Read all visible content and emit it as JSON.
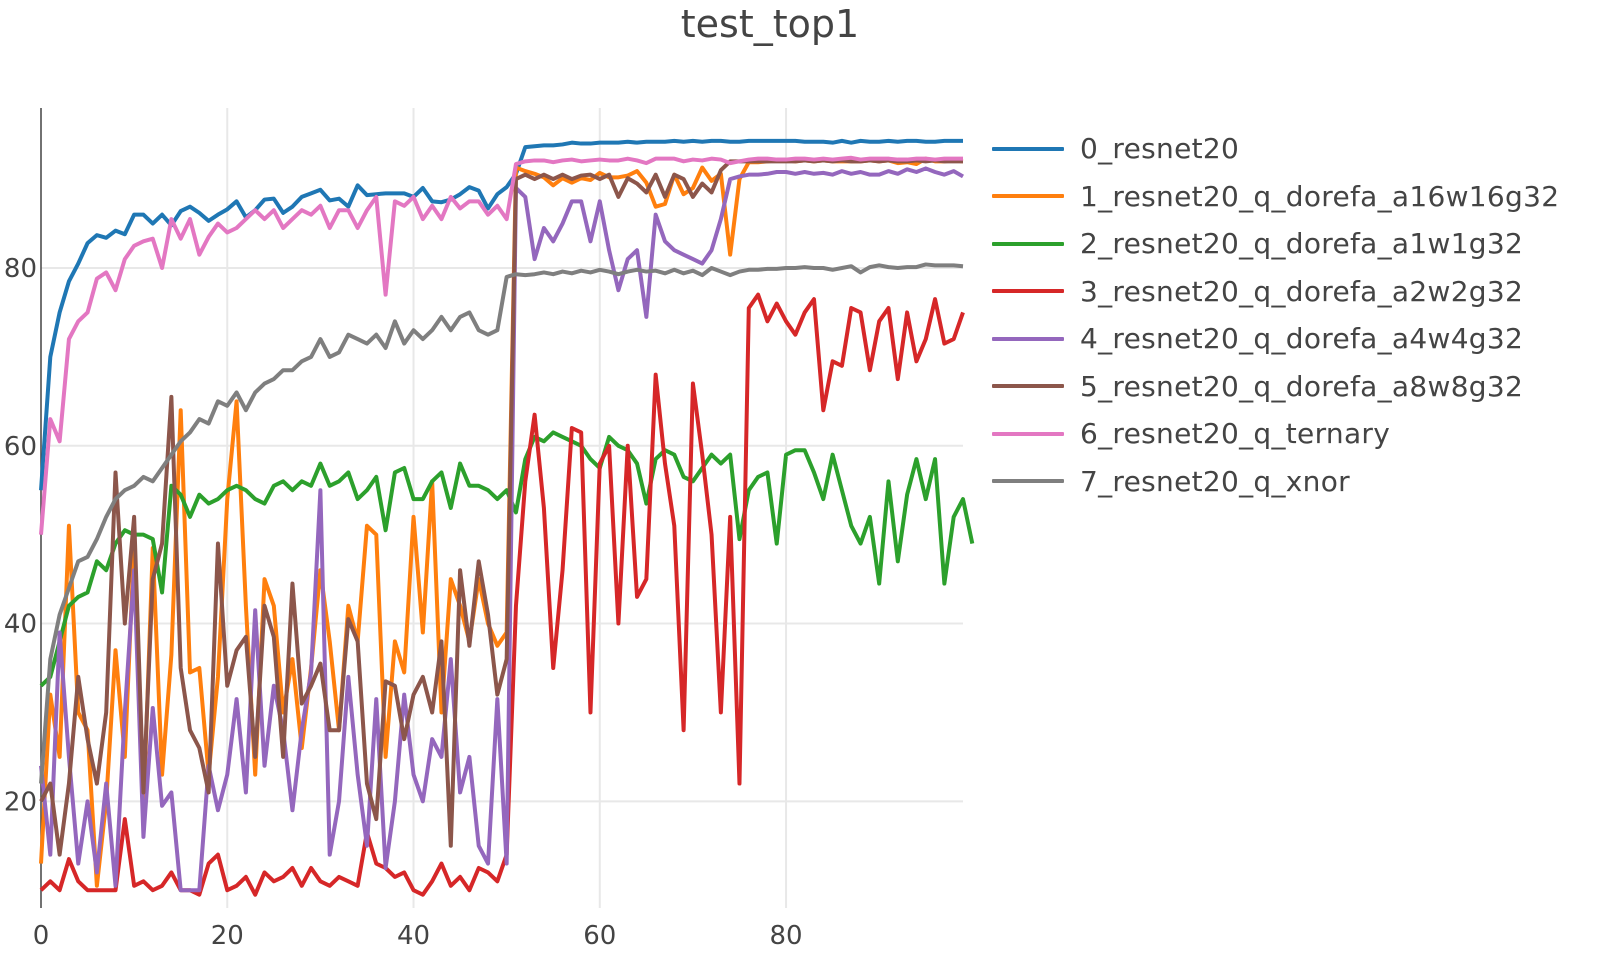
{
  "chart_data": {
    "type": "line",
    "title": "test_top1",
    "xlabel": "",
    "ylabel": "",
    "xlim": [
      0,
      99
    ],
    "ylim": [
      8,
      98
    ],
    "xticks": [
      0,
      20,
      40,
      60,
      80
    ],
    "yticks": [
      20,
      40,
      60,
      80
    ],
    "grid": true,
    "legend_position": "right",
    "series": [
      {
        "name": "0_resnet20",
        "color": "#1f77b4",
        "values": [
          55,
          70,
          75,
          78.5,
          80.5,
          82.8,
          83.7,
          83.4,
          84.2,
          83.8,
          86,
          86,
          85,
          86,
          84.8,
          86.4,
          86.9,
          86.2,
          85.3,
          86,
          86.6,
          87.5,
          85.7,
          86.5,
          87.7,
          87.8,
          86.2,
          86.9,
          88,
          88.4,
          88.8,
          87.6,
          87.8,
          86.9,
          89.3,
          88.2,
          88.3,
          88.4,
          88.4,
          88.4,
          88,
          89,
          87.5,
          87.4,
          87.7,
          88.3,
          89.1,
          88.7,
          86.7,
          88.3,
          89.1,
          90.6,
          93.6,
          93.7,
          93.8,
          93.8,
          93.9,
          94.1,
          94,
          94,
          94.1,
          94.1,
          94.1,
          94.2,
          94.1,
          94.2,
          94.2,
          94.2,
          94.3,
          94.2,
          94.3,
          94.2,
          94.3,
          94.3,
          94.2,
          94.2,
          94.3,
          94.3,
          94.3,
          94.3,
          94.3,
          94.3,
          94.2,
          94.2,
          94.2,
          94.1,
          94.3,
          94.1,
          94.3,
          94.2,
          94.2,
          94.3,
          94.2,
          94.3,
          94.3,
          94.2,
          94.2,
          94.3,
          94.3,
          94.3
        ]
      },
      {
        "name": "1_resnet20_q_dorefa_a16w16g32",
        "color": "#ff7f0e",
        "values": [
          13,
          32,
          25,
          51,
          30,
          28,
          10.5,
          20,
          37,
          25,
          49,
          19,
          48.5,
          23,
          36.5,
          64,
          34.5,
          35,
          23,
          34,
          54,
          65,
          42,
          23,
          45,
          42,
          30,
          36,
          26,
          35,
          46,
          38,
          28,
          42,
          38,
          51,
          50,
          25,
          38,
          34.5,
          52,
          39,
          56,
          30,
          45,
          42,
          38,
          45,
          40,
          37.5,
          39,
          91.3,
          90.9,
          90.6,
          90.2,
          89.3,
          90.1,
          89.6,
          90.1,
          89.9,
          90.7,
          90.2,
          90.2,
          90.4,
          90.9,
          89.6,
          86.9,
          87.2,
          90.5,
          88.3,
          89,
          91.3,
          89.8,
          90.6,
          81.5,
          90,
          91.9,
          91.9,
          92,
          92.1,
          92.1,
          92,
          92.1,
          92,
          92.1,
          92,
          92,
          92,
          92,
          92.1,
          92,
          92.1,
          91.8,
          91.9,
          91.7,
          92.3,
          92,
          92,
          92.1,
          92
        ]
      },
      {
        "name": "2_resnet20_q_dorefa_a1w1g32",
        "color": "#2ca02c",
        "values": [
          33,
          34,
          38,
          42,
          43,
          43.5,
          47,
          46,
          49,
          50.5,
          50,
          50,
          49.5,
          43.5,
          55.5,
          54.5,
          52,
          54.5,
          53.5,
          54,
          55,
          55.5,
          55,
          54,
          53.5,
          55.5,
          56,
          55,
          56,
          55.5,
          58,
          55.5,
          56,
          57,
          54,
          55,
          56.5,
          50.5,
          57,
          57.5,
          54,
          54,
          56,
          57,
          53,
          58,
          55.5,
          55.5,
          55,
          54,
          55,
          52.5,
          58.5,
          61,
          60.5,
          61.5,
          61,
          60.5,
          60,
          58.5,
          57.5,
          61,
          60,
          59.5,
          58,
          53.5,
          58.5,
          59.5,
          59,
          56.5,
          56,
          57.5,
          59,
          58,
          59,
          49.5,
          55,
          56.5,
          57,
          49,
          59,
          59.5,
          59.5,
          57,
          54,
          59,
          55,
          51,
          49,
          52,
          44.5,
          56,
          47,
          54.5,
          58.5,
          54,
          58.5,
          44.5,
          52,
          54,
          49
        ]
      },
      {
        "name": "3_resnet20_q_dorefa_a2w2g32",
        "color": "#d62728",
        "values": [
          10,
          11,
          10,
          13.5,
          11,
          10,
          10,
          10,
          10,
          18,
          10.5,
          11,
          10,
          10.5,
          12,
          10,
          10,
          9.5,
          13,
          14,
          10,
          10.5,
          11.5,
          9.5,
          12,
          11,
          11.5,
          12.5,
          10.5,
          12.5,
          11,
          10.5,
          11.5,
          11,
          10.5,
          16.5,
          13,
          12.5,
          11.5,
          12,
          10,
          9.5,
          11,
          13,
          10.5,
          11.5,
          10,
          12.5,
          12,
          11,
          14,
          42,
          56,
          63.5,
          53,
          35,
          46,
          62,
          61.5,
          30,
          58,
          60,
          40,
          60,
          43,
          45,
          68,
          58,
          51,
          28,
          67,
          59,
          50,
          30,
          52,
          22,
          75.5,
          77,
          74,
          76,
          74,
          72.5,
          75,
          76.5,
          64,
          69.5,
          69,
          75.5,
          75,
          68.5,
          74,
          75.5,
          67.5,
          75,
          69.5,
          72,
          76.5,
          71.5,
          72,
          75
        ]
      },
      {
        "name": "4_resnet20_q_dorefa_a4w4g32",
        "color": "#9467bd",
        "values": [
          24,
          14,
          39,
          25,
          13,
          20,
          12,
          22,
          10.5,
          30,
          46,
          16,
          30.5,
          19.5,
          21,
          10,
          10,
          10,
          24,
          19,
          23,
          31.5,
          21,
          41.5,
          24,
          33,
          28,
          19,
          28,
          34.5,
          55,
          14,
          20,
          34,
          23,
          15,
          31.5,
          12.5,
          20,
          32,
          23,
          20,
          27,
          25,
          36,
          21,
          25,
          15,
          13,
          31.5,
          13,
          89,
          88,
          81,
          84.5,
          83,
          85,
          87.5,
          87.5,
          83,
          87.5,
          82,
          77.5,
          81,
          82,
          74.5,
          86,
          83,
          82,
          81.5,
          81,
          80.5,
          82,
          85.5,
          90,
          90.3,
          90.5,
          90.5,
          90.6,
          90.8,
          90.8,
          90.6,
          90.8,
          90.6,
          90.7,
          90.5,
          90.9,
          90.6,
          90.8,
          90.5,
          90.5,
          90.9,
          90.6,
          91.1,
          90.8,
          91.2,
          90.8,
          90.5,
          90.9,
          90.3
        ]
      },
      {
        "name": "5_resnet20_q_dorefa_a8w8g32",
        "color": "#8c564b",
        "values": [
          20,
          22,
          14,
          22,
          34,
          27,
          22,
          30,
          57,
          40,
          52,
          21,
          45,
          49,
          65.5,
          35,
          28,
          26,
          21,
          49,
          33,
          37,
          38.5,
          25,
          42,
          38.5,
          25,
          44.5,
          31,
          33,
          35.5,
          28,
          28,
          40.5,
          38,
          22,
          18,
          33.5,
          33,
          27,
          32,
          34,
          30,
          38,
          15,
          46,
          37.5,
          47,
          41,
          32,
          36,
          90,
          90.5,
          90,
          90.5,
          90,
          90.5,
          90,
          90.4,
          90.5,
          90,
          90.5,
          88,
          90.1,
          89.5,
          88.5,
          90.5,
          88,
          90.5,
          90,
          88,
          89.5,
          88.5,
          91,
          92,
          92,
          92,
          92,
          92,
          92,
          92,
          92,
          92.1,
          92,
          92.1,
          92,
          92.1,
          92,
          92,
          92.1,
          92,
          92.1,
          92,
          92,
          92.1,
          92,
          92.1,
          92,
          92,
          92
        ]
      },
      {
        "name": "6_resnet20_q_ternary",
        "color": "#e377c2",
        "values": [
          50,
          63,
          60.5,
          72,
          74,
          75,
          78.8,
          79.5,
          77.5,
          81,
          82.5,
          83,
          83.3,
          80,
          85.5,
          83.3,
          85.5,
          81.5,
          83.5,
          85,
          84,
          84.5,
          85.5,
          86.5,
          85.5,
          86.5,
          84.5,
          85.5,
          86.5,
          86,
          87,
          84.5,
          86.5,
          86.5,
          84.5,
          86.5,
          88,
          77,
          87.5,
          87,
          88,
          85.5,
          87,
          85.5,
          88,
          86.7,
          87.5,
          87.5,
          86,
          87,
          85.5,
          91.7,
          92,
          92.1,
          92.1,
          91.9,
          92.1,
          92.2,
          92,
          92.1,
          92.2,
          92.1,
          92.1,
          92.3,
          92.1,
          91.8,
          92.3,
          92.3,
          92.3,
          92,
          92.2,
          92.1,
          92.3,
          92.2,
          91.8,
          92,
          92.2,
          92.3,
          92.3,
          92.2,
          92.2,
          92.3,
          92.3,
          92.2,
          92.3,
          92.2,
          92.3,
          92.4,
          92.2,
          92.3,
          92.3,
          92.3,
          92.2,
          92.2,
          92.3,
          92.3,
          92.2,
          92.3,
          92.3,
          92.3
        ]
      },
      {
        "name": "7_resnet20_q_xnor",
        "color": "#7f7f7f",
        "values": [
          22,
          36,
          41,
          44,
          47,
          47.5,
          49.5,
          52,
          54,
          55,
          55.5,
          56.5,
          56,
          57.5,
          59,
          60.5,
          61.5,
          63,
          62.5,
          65,
          64.5,
          66,
          64,
          66,
          67,
          67.5,
          68.5,
          68.5,
          69.5,
          70,
          72,
          70,
          70.5,
          72.5,
          72,
          71.5,
          72.5,
          71,
          74,
          71.5,
          73,
          72,
          73,
          74.5,
          73,
          74.5,
          75,
          73,
          72.5,
          73,
          79,
          79.3,
          79.2,
          79.3,
          79.5,
          79.3,
          79.6,
          79.4,
          79.7,
          79.5,
          79.8,
          79.6,
          79.3,
          79.6,
          79.8,
          79.6,
          79.7,
          79.4,
          79.8,
          79.4,
          79.7,
          79.2,
          80,
          79.6,
          79.2,
          79.6,
          79.8,
          79.8,
          79.9,
          79.9,
          80,
          80,
          80.1,
          80,
          80,
          79.8,
          80,
          80.2,
          79.5,
          80.1,
          80.3,
          80.1,
          80,
          80.1,
          80.1,
          80.4,
          80.3,
          80.3,
          80.3,
          80.2
        ]
      }
    ]
  }
}
